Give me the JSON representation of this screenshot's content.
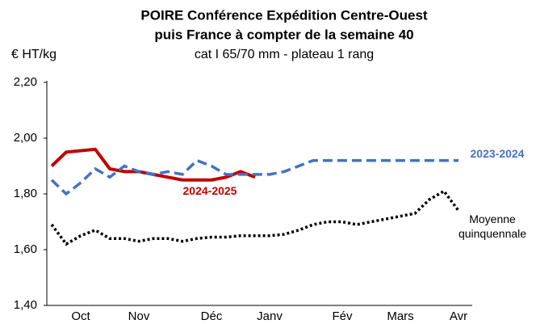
{
  "chart_data": {
    "type": "line",
    "title": "POIRE Conférence Expédition Centre-Ouest",
    "subtitle": "puis France à compter de la semaine 40",
    "subtitle2": "cat I 65/70 mm - plateau 1 rang",
    "y_label": "€ HT/kg",
    "categories": [
      null,
      null,
      "Oct",
      null,
      null,
      null,
      "Nov",
      null,
      null,
      null,
      null,
      "Déc",
      null,
      null,
      null,
      "Janv",
      null,
      null,
      null,
      null,
      "Fév",
      null,
      null,
      null,
      "Mars",
      null,
      null,
      null,
      "Avr"
    ],
    "ylim": [
      1.4,
      2.2
    ],
    "yticks": [
      {
        "value": 1.4,
        "label": "1,40"
      },
      {
        "value": 1.6,
        "label": "1,60"
      },
      {
        "value": 1.8,
        "label": "1,80"
      },
      {
        "value": 2.0,
        "label": "2,00"
      },
      {
        "value": 2.2,
        "label": "2,20"
      }
    ],
    "grid": false,
    "series": [
      {
        "name": "2024-2025",
        "color": "#c00000",
        "style": "solid",
        "values": [
          1.9,
          1.95,
          1.955,
          1.96,
          1.89,
          1.88,
          1.88,
          1.87,
          1.86,
          1.85,
          1.85,
          1.85,
          1.86,
          1.88,
          1.86,
          null,
          null,
          null,
          null,
          null,
          null,
          null,
          null,
          null,
          null,
          null,
          null,
          null,
          null
        ]
      },
      {
        "name": "2023-2024",
        "color": "#4472c4",
        "style": "dashed",
        "values": [
          1.85,
          1.8,
          1.84,
          1.89,
          1.86,
          1.9,
          1.88,
          1.87,
          1.88,
          1.87,
          1.92,
          1.9,
          1.87,
          1.87,
          1.87,
          1.87,
          1.88,
          1.9,
          1.92,
          1.92,
          1.92,
          1.92,
          1.92,
          1.92,
          1.92,
          1.92,
          1.92,
          1.92,
          1.92
        ]
      },
      {
        "name": "Moyenne quinquennale",
        "color": "#000000",
        "style": "dotted",
        "values": [
          1.69,
          1.62,
          1.65,
          1.67,
          1.64,
          1.64,
          1.63,
          1.64,
          1.64,
          1.63,
          1.64,
          1.645,
          1.645,
          1.65,
          1.65,
          1.65,
          1.655,
          1.67,
          1.69,
          1.7,
          1.7,
          1.69,
          1.7,
          1.71,
          1.72,
          1.73,
          1.78,
          1.81,
          1.74
        ]
      }
    ]
  }
}
